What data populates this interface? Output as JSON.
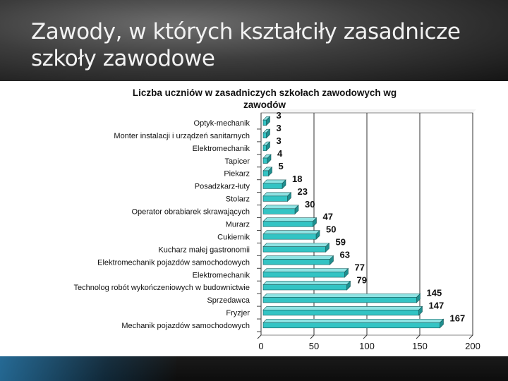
{
  "slide": {
    "title_line1": "Zawody, w których kształciły zasadnicze",
    "title_line2": "szkoły zawodowe"
  },
  "chart_data": {
    "type": "bar",
    "orientation": "horizontal",
    "title_line1": "Liczba uczniów w zasadniczych szkołach zawodowych wg",
    "title_line2": "zawodów",
    "categories": [
      "Optyk-mechanik",
      "Monter instalacji i urządzeń sanitarnych",
      "Elektromechanik",
      "Tapicer",
      "Piekarz",
      "Posadzkarz-łuty",
      "Stolarz",
      "Operator obrabiarek skrawających",
      "Murarz",
      "Cukiernik",
      "Kucharz małej gastronomii",
      "Elektromechanik pojazdów samochodowych",
      "Elektromechanik",
      "Technolog robót wykończeniowych w budownictwie",
      "Sprzedawca",
      "Fryzjer",
      "Mechanik pojazdów samochodowych"
    ],
    "values": [
      3,
      3,
      3,
      4,
      5,
      18,
      23,
      30,
      47,
      50,
      59,
      63,
      77,
      79,
      145,
      147,
      167
    ],
    "xlim": [
      0,
      200
    ],
    "xticks": [
      0,
      50,
      100,
      150,
      200
    ],
    "grid": true,
    "bar_color": "#33c4c4"
  }
}
